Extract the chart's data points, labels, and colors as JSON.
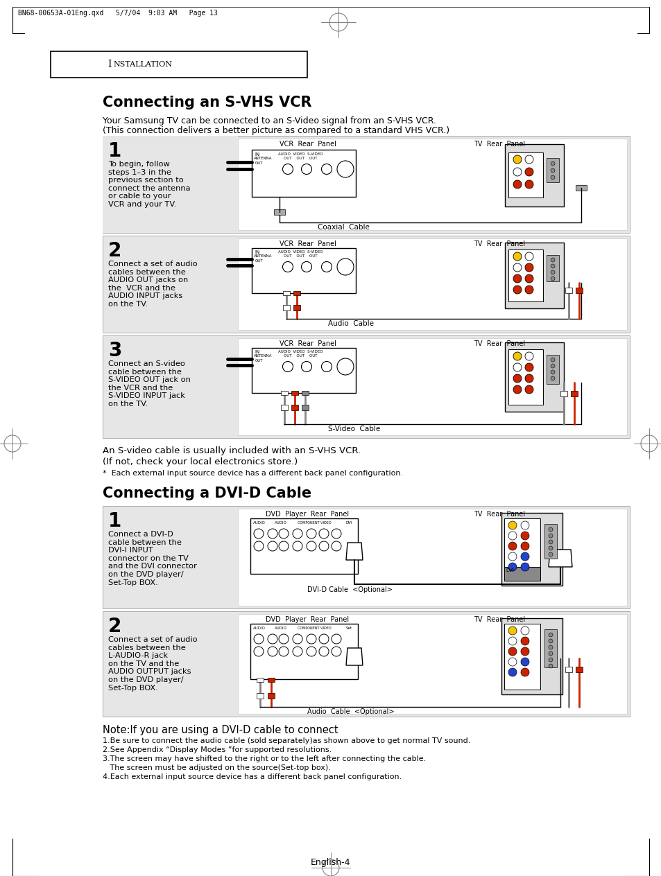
{
  "page_header": "BN68-00653A-01Eng.qxd   5/7/04  9:03 AM   Page 13",
  "section_label": "INSTALLATION",
  "title1": "Connecting an S-VHS VCR",
  "intro1_line1": "Your Samsung TV can be connected to an S-Video signal from an S-VHS VCR.",
  "intro1_line2": "(This connection delivers a better picture as compared to a standard VHS VCR.)",
  "step1_num": "1",
  "step1_text": "To begin, follow\nsteps 1–3 in the\nprevious section to\nconnect the antenna\nor cable to your\nVCR and your TV.",
  "step1_vcr_label": "VCR  Rear  Panel",
  "step1_tv_label": "TV  Rear  Panel",
  "step1_cable_label": "Coaxial  Cable",
  "step2_num": "2",
  "step2_text": "Connect a set of audio\ncables between the\nAUDIO OUT jacks on\nthe  VCR and the\nAUDIO INPUT jacks\non the TV.",
  "step2_vcr_label": "VCR  Rear  Panel",
  "step2_tv_label": "TV  Rear  Panel",
  "step2_cable_label": "Audio  Cable",
  "step3_num": "3",
  "step3_text": "Connect an S-video\ncable between the\nS-VIDEO OUT jack on\nthe VCR and the\nS-VIDEO INPUT jack\non the TV.",
  "step3_vcr_label": "VCR  Rear  Panel",
  "step3_tv_label": "TV  Rear  Panel",
  "step3_cable_label": "S-Video  Cable",
  "note1_line1": "An S-video cable is usually included with an S-VHS VCR.",
  "note1_line2": "(If not, check your local electronics store.)",
  "footnote1": "*  Each external input source device has a different back panel configuration.",
  "title2": "Connecting a DVI-D Cable",
  "step4_num": "1",
  "step4_text": "Connect a DVI-D\ncable between the\nDVI-I INPUT\nconnector on the TV\nand the DVI connector\non the DVD player/\nSet-Top BOX.",
  "step4_dvd_label": "DVD  Player  Rear  Panel",
  "step4_tv_label": "TV  Rear  Panel",
  "step4_cable_label": "DVI-D Cable  <Optional>",
  "step5_num": "2",
  "step5_text": "Connect a set of audio\ncables between the\nL-AUDIO-R jack\non the TV and the\nAUDIO OUTPUT jacks\non the DVD player/\nSet-Top BOX.",
  "step5_dvd_label": "DVD  Player  Rear  Panel",
  "step5_tv_label": "TV  Rear  Panel",
  "step5_cable_label": "Audio  Cable  <Optional>",
  "note2_title": "Note:If you are using a DVI-D cable to connect",
  "note2_lines": [
    "1.Be sure to connect the audio cable (sold separately)as shown above to get normal TV sound.",
    "2.See Appendix “Display Modes ”for supported resolutions.",
    "3.The screen may have shifted to the right or to the left after connecting the cable.",
    "   The screen must be adjusted on the source(Set-top box).",
    "4.Each external input source device has a different back panel configuration."
  ],
  "page_num": "English-4",
  "bg_color": "#ffffff"
}
